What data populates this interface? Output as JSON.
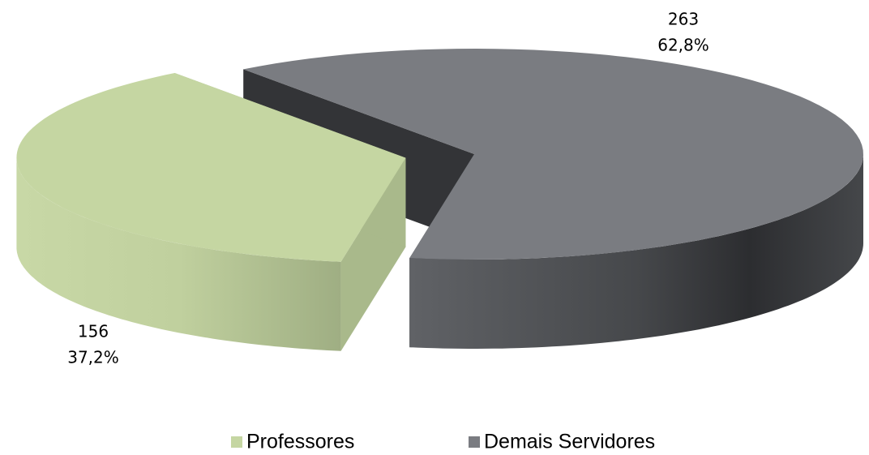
{
  "chart_data": {
    "type": "pie",
    "categories": [
      "Professores",
      "Demais Servidores"
    ],
    "values": [
      156,
      263
    ],
    "percent_labels": [
      "37,2%",
      "62,8%"
    ],
    "colors": [
      "#c5d6a2",
      "#7a7c81"
    ],
    "legend": "bottom"
  }
}
